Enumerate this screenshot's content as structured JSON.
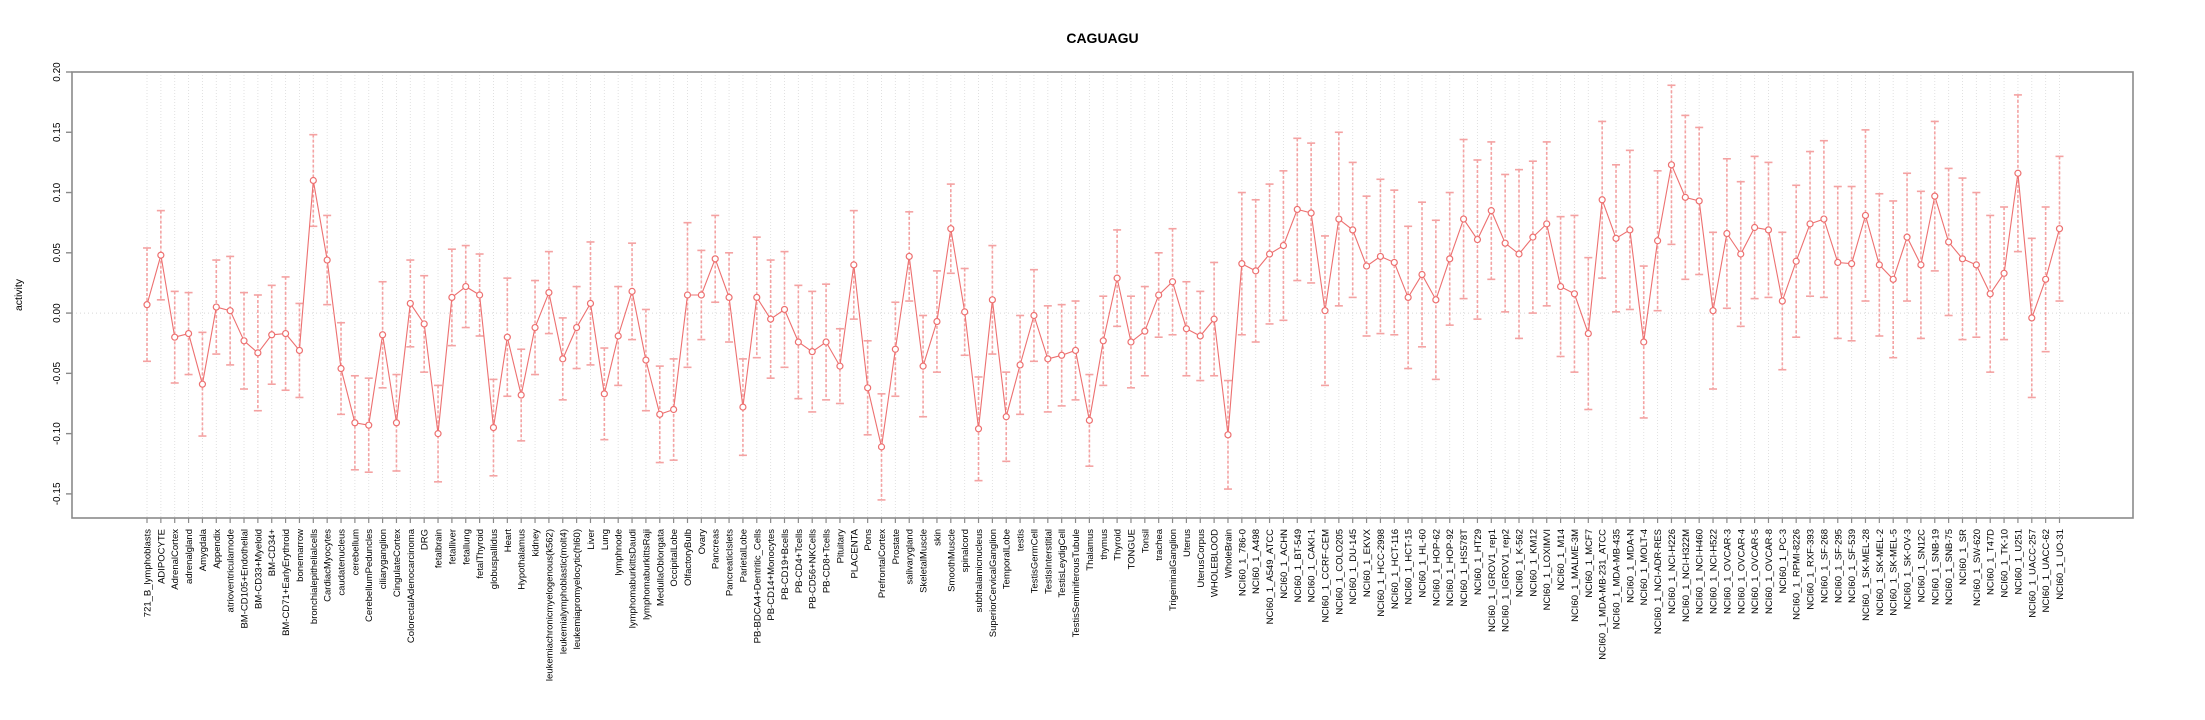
{
  "figure": {
    "title": "CAGUAGU"
  },
  "chart_data": {
    "type": "line",
    "variant": "mean-points-with-error-bars",
    "title": "CAGUAGU",
    "xlabel": "",
    "ylabel": "activity",
    "ylim": [
      -0.17,
      0.2
    ],
    "yticks": [
      0.2,
      0.15,
      0.1,
      0.05,
      0.0,
      -0.05,
      -0.1,
      -0.15
    ],
    "grid": {
      "vertical_per_category": true,
      "zero_line_dotted": true
    },
    "legend_position": "none",
    "colors": {
      "point": "#ED7070",
      "line": "#ED7070",
      "error_bar": "#F4A2A2",
      "grid": "#DEDEDE",
      "zero_line": "#D8D8D8",
      "box": "#8A8A8A",
      "text": "#000000"
    },
    "categories": [
      "721_B_lymphoblasts",
      "ADIPOCYTE",
      "AdrenalCortex",
      "adrenalgland",
      "Amygdala",
      "Appendix",
      "atrioventricularnode",
      "BM-CD105+Endothelial",
      "BM-CD33+Myeloid",
      "BM-CD34+",
      "BM-CD71+EarlyErythroid",
      "bonemarrow",
      "bronchialepithelialcells",
      "CardiacMyocytes",
      "caudatenucleus",
      "cerebellum",
      "CerebellumPeduncles",
      "ciliaryganglion",
      "CingulateCortex",
      "ColorectalAdenocarcinoma",
      "DRG",
      "fetalbrain",
      "fetalliver",
      "fetallung",
      "fetalThyroid",
      "globuspallidus",
      "Heart",
      "Hypothalamus",
      "kidney",
      "leukemiachronicmyelogenous(k562)",
      "leukemialymphoblastic(molt4)",
      "leukemiapromyelocytic(hl60)",
      "Liver",
      "Lung",
      "lymphnode",
      "lymphomaburkittsDaudi",
      "lymphomaburkittsRaji",
      "MedullaOblongata",
      "OccipitalLobe",
      "OlfactoryBulb",
      "Ovary",
      "Pancreas",
      "PancreaticIslets",
      "ParietalLobe",
      "PB-BDCA4+Dentritic_Cells",
      "PB-CD14+Monocytes",
      "PB-CD19+Bcells",
      "PB-CD4+Tcells",
      "PB-CD56+NKCells",
      "PB-CD8+Tcells",
      "Pituitary",
      "PLACENTA",
      "Pons",
      "PrefrontalCortex",
      "Prostate",
      "salivarygland",
      "SkeletalMuscle",
      "skin",
      "SmoothMuscle",
      "spinalcord",
      "subthalamicnucleus",
      "SuperiorCervicalGanglion",
      "TemporalLobe",
      "testis",
      "TestisGermCell",
      "TestisInterstitial",
      "TestisLeydigCell",
      "TestisSeminiferousTubule",
      "Thalamus",
      "thymus",
      "Thyroid",
      "TONGUE",
      "Tonsil",
      "trachea",
      "TrigeminalGanglion",
      "Uterus",
      "UterusCorpus",
      "WHOLEBLOOD",
      "WholeBrain",
      "NCI60_1_786-0",
      "NCI60_1_A498",
      "NCI60_1_A549_ATCC",
      "NCI60_1_ACHN",
      "NCI60_1_BT-549",
      "NCI60_1_CAKI-1",
      "NCI60_1_CCRF-CEM",
      "NCI60_1_COLO205",
      "NCI60_1_DU-145",
      "NCI60_1_EKVX",
      "NCI60_1_HCC-2998",
      "NCI60_1_HCT-116",
      "NCI60_1_HCT-15",
      "NCI60_1_HL-60",
      "NCI60_1_HOP-62",
      "NCI60_1_HOP-92",
      "NCI60_1_HS578T",
      "NCI60_1_HT29",
      "NCI60_1_IGROV1_rep1",
      "NCI60_1_IGROV1_rep2",
      "NCI60_1_K-562",
      "NCI60_1_KM12",
      "NCI60_1_LOXIMVI",
      "NCI60_1_M14",
      "NCI60_1_MALME-3M",
      "NCI60_1_MCF7",
      "NCI60_1_MDA-MB-231_ATCC",
      "NCI60_1_MDA-MB-435",
      "NCI60_1_MDA-N",
      "NCI60_1_MOLT-4",
      "NCI60_1_NCI-ADR-RES",
      "NCI60_1_NCI-H226",
      "NCI60_1_NCI-H322M",
      "NCI60_1_NCI-H460",
      "NCI60_1_NCI-H522",
      "NCI60_1_OVCAR-3",
      "NCI60_1_OVCAR-4",
      "NCI60_1_OVCAR-5",
      "NCI60_1_OVCAR-8",
      "NCI60_1_PC-3",
      "NCI60_1_RPMI-8226",
      "NCI60_1_RXF-393",
      "NCI60_1_SF-268",
      "NCI60_1_SF-295",
      "NCI60_1_SF-539",
      "NCI60_1_SK-MEL-28",
      "NCI60_1_SK-MEL-2",
      "NCI60_1_SK-MEL-5",
      "NCI60_1_SK-OV-3",
      "NCI60_1_SN12C",
      "NCI60_1_SNB-19",
      "NCI60_1_SNB-75",
      "NCI60_1_SR",
      "NCI60_1_SW-620",
      "NCI60_1_T47D",
      "NCI60_1_TK-10",
      "NCI60_1_U251",
      "NCI60_1_UACC-257",
      "NCI60_1_UACC-62",
      "NCI60_1_UO-31"
    ],
    "series": [
      {
        "name": "activity",
        "values": [
          0.007,
          0.048,
          -0.02,
          -0.017,
          -0.059,
          0.005,
          0.002,
          -0.023,
          -0.033,
          -0.018,
          -0.017,
          -0.031,
          0.11,
          0.044,
          -0.046,
          -0.091,
          -0.093,
          -0.018,
          -0.091,
          0.008,
          -0.009,
          -0.1,
          0.013,
          0.022,
          0.015,
          -0.095,
          -0.02,
          -0.068,
          -0.012,
          0.017,
          -0.038,
          -0.012,
          0.008,
          -0.067,
          -0.019,
          0.018,
          -0.039,
          -0.084,
          -0.08,
          0.015,
          0.015,
          0.045,
          0.013,
          -0.078,
          0.013,
          -0.005,
          0.003,
          -0.024,
          -0.032,
          -0.024,
          -0.044,
          0.04,
          -0.062,
          -0.111,
          -0.03,
          0.047,
          -0.044,
          -0.007,
          0.07,
          0.001,
          -0.096,
          0.011,
          -0.086,
          -0.043,
          -0.002,
          -0.038,
          -0.035,
          -0.031,
          -0.089,
          -0.023,
          0.029,
          -0.024,
          -0.015,
          0.015,
          0.026,
          -0.013,
          -0.019,
          -0.005,
          -0.101,
          0.041,
          0.035,
          0.049,
          0.056,
          0.086,
          0.083,
          0.002,
          0.078,
          0.069,
          0.039,
          0.047,
          0.042,
          0.013,
          0.032,
          0.011,
          0.045,
          0.078,
          0.061,
          0.085,
          0.058,
          0.049,
          0.063,
          0.074,
          0.022,
          0.016,
          -0.017,
          0.094,
          0.062,
          0.069,
          -0.024,
          0.06,
          0.123,
          0.096,
          0.093,
          0.002,
          0.066,
          0.049,
          0.071,
          0.069,
          0.01,
          0.043,
          0.074,
          0.078,
          0.042,
          0.041,
          0.081,
          0.04,
          0.028,
          0.063,
          0.04,
          0.097,
          0.059,
          0.045,
          0.04,
          0.016,
          0.033,
          0.116,
          -0.004,
          0.028,
          0.07
        ],
        "se": [
          0.047,
          0.037,
          0.038,
          0.034,
          0.043,
          0.039,
          0.045,
          0.04,
          0.048,
          0.041,
          0.047,
          0.039,
          0.038,
          0.037,
          0.038,
          0.039,
          0.039,
          0.044,
          0.04,
          0.036,
          0.04,
          0.04,
          0.04,
          0.034,
          0.034,
          0.04,
          0.049,
          0.038,
          0.039,
          0.034,
          0.034,
          0.034,
          0.051,
          0.038,
          0.041,
          0.04,
          0.042,
          0.04,
          0.042,
          0.06,
          0.037,
          0.036,
          0.037,
          0.04,
          0.05,
          0.049,
          0.048,
          0.047,
          0.05,
          0.048,
          0.031,
          0.045,
          0.039,
          0.044,
          0.039,
          0.037,
          0.042,
          0.042,
          0.037,
          0.036,
          0.043,
          0.045,
          0.037,
          0.041,
          0.038,
          0.044,
          0.042,
          0.041,
          0.038,
          0.037,
          0.04,
          0.038,
          0.037,
          0.035,
          0.044,
          0.039,
          0.037,
          0.047,
          0.045,
          0.059,
          0.059,
          0.058,
          0.062,
          0.059,
          0.058,
          0.062,
          0.072,
          0.056,
          0.058,
          0.064,
          0.06,
          0.059,
          0.06,
          0.066,
          0.055,
          0.066,
          0.066,
          0.057,
          0.057,
          0.07,
          0.063,
          0.068,
          0.058,
          0.065,
          0.063,
          0.065,
          0.061,
          0.066,
          0.063,
          0.058,
          0.066,
          0.068,
          0.061,
          0.065,
          0.062,
          0.06,
          0.059,
          0.056,
          0.057,
          0.063,
          0.06,
          0.065,
          0.063,
          0.064,
          0.071,
          0.059,
          0.065,
          0.053,
          0.061,
          0.062,
          0.061,
          0.067,
          0.06,
          0.065,
          0.055,
          0.065,
          0.066,
          0.06,
          0.06
        ]
      }
    ]
  }
}
